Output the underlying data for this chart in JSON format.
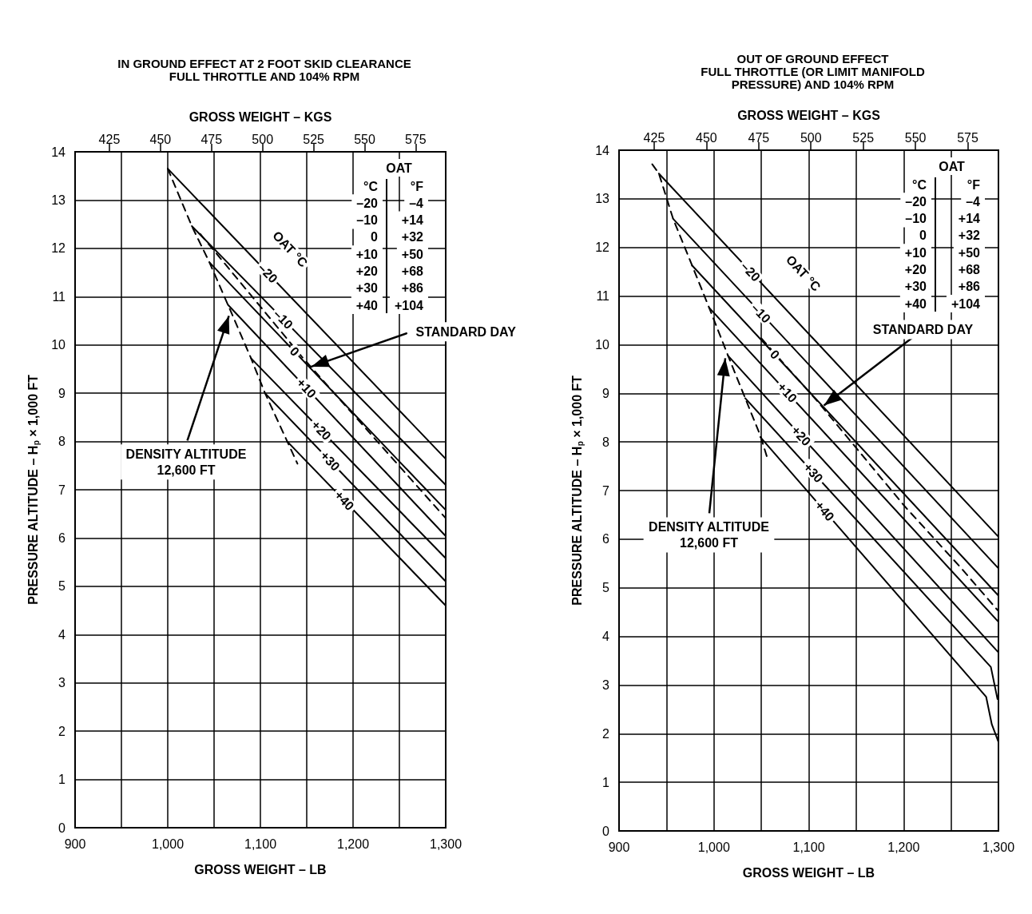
{
  "chart_data": [
    {
      "type": "line",
      "title": "IN GROUND EFFECT AT 2 FOOT SKID CLEARANCE\nFULL THROTTLE AND 104% RPM",
      "xlabel": "GROSS WEIGHT – LB",
      "x2label": "GROSS WEIGHT – KGS",
      "ylabel": "PRESSURE ALTITUDE – H$_{p}$ × 1,000 FT",
      "xlim": [
        900,
        1300
      ],
      "ylim": [
        0,
        14
      ],
      "x2lim": [
        408.2,
        589.7
      ],
      "xticks": [
        900,
        {
          "value": 950,
          "label": null
        },
        {
          "value": 1000,
          "label": "1,000"
        },
        {
          "value": 1050,
          "label": null
        },
        {
          "value": 1100,
          "label": "1,100"
        },
        {
          "value": 1150,
          "label": null
        },
        {
          "value": 1200,
          "label": "1,200"
        },
        {
          "value": 1250,
          "label": null
        },
        {
          "value": 1300,
          "label": "1,300"
        }
      ],
      "yticks": [
        0,
        1,
        2,
        3,
        4,
        5,
        6,
        7,
        8,
        9,
        10,
        11,
        12,
        13,
        14
      ],
      "x2ticks": [
        425,
        450,
        475,
        500,
        525,
        550,
        575
      ],
      "grid": true,
      "marker": "none",
      "line_style": "solid",
      "series": [
        {
          "name": "–20",
          "color": "#000000",
          "x": [
            1000,
            1300
          ],
          "values": [
            13.65,
            7.64
          ]
        },
        {
          "name": "–10",
          "color": "#000000",
          "x": [
            1026,
            1300
          ],
          "values": [
            12.46,
            7.1
          ]
        },
        {
          "name": "0",
          "color": "#000000",
          "x": [
            1045,
            1300
          ],
          "values": [
            11.71,
            6.58
          ]
        },
        {
          "name": "+10",
          "color": "#000000",
          "x": [
            1065,
            1300
          ],
          "values": [
            10.83,
            6.04
          ]
        },
        {
          "name": "+20",
          "color": "#000000",
          "x": [
            1090,
            1300
          ],
          "values": [
            9.72,
            5.58
          ]
        },
        {
          "name": "+30",
          "color": "#000000",
          "x": [
            1105,
            1300
          ],
          "values": [
            9.0,
            5.1
          ]
        },
        {
          "name": "+40",
          "color": "#000000",
          "x": [
            1129,
            1300
          ],
          "values": [
            8.0,
            4.6
          ]
        },
        {
          "color": "#000000",
          "line_style": "dashed",
          "x": [
            1035,
            1145,
            1300
          ],
          "values": [
            12.3,
            9.75,
            6.41
          ]
        },
        {
          "color": "#000000",
          "line_style": "dashed",
          "x": [
            1000,
            1026,
            1045,
            1065,
            1090,
            1105,
            1129,
            1140
          ],
          "values": [
            13.65,
            12.46,
            11.71,
            10.83,
            9.72,
            9.0,
            8.0,
            7.54
          ]
        }
      ],
      "annotations": [
        "OAT °C",
        "OAT",
        "°C",
        "°F",
        "–20",
        "–4",
        "–10",
        "+14",
        "0",
        "+32",
        "+10",
        "+50",
        "+20",
        "+68",
        "+30",
        "+86",
        "+40",
        "+104",
        {
          "text": "STANDARD DAY",
          "x": 1155,
          "y": 9.55
        },
        {
          "text": "DENSITY ALTITUDE\n12,600 FT",
          "x": 1066,
          "y": 10.6
        }
      ]
    },
    {
      "type": "line",
      "title": "OUT OF GROUND EFFECT\nFULL THROTTLE (OR LIMIT MANIFOLD\nPRESSURE) AND 104% RPM",
      "xlabel": "GROSS WEIGHT – LB",
      "x2label": "GROSS WEIGHT – KGS",
      "ylabel": "PRESSURE ALTITUDE – H$_{p}$ × 1,000 FT",
      "xlim": [
        900,
        1300
      ],
      "ylim": [
        0,
        14
      ],
      "x2lim": [
        408.2,
        589.7
      ],
      "xticks": [
        900,
        {
          "value": 950,
          "label": null
        },
        {
          "value": 1000,
          "label": "1,000"
        },
        {
          "value": 1050,
          "label": null
        },
        {
          "value": 1100,
          "label": "1,100"
        },
        {
          "value": 1150,
          "label": null
        },
        {
          "value": 1200,
          "label": "1,200"
        },
        {
          "value": 1250,
          "label": null
        },
        {
          "value": 1300,
          "label": "1,300"
        }
      ],
      "yticks": [
        0,
        1,
        2,
        3,
        4,
        5,
        6,
        7,
        8,
        9,
        10,
        11,
        12,
        13,
        14
      ],
      "x2ticks": [
        425,
        450,
        475,
        500,
        525,
        550,
        575
      ],
      "grid": true,
      "marker": "none",
      "line_style": "solid",
      "series": [
        {
          "name": "–20",
          "color": "#000000",
          "x": [
            942,
            1300
          ],
          "values": [
            13.52,
            6.05
          ]
        },
        {
          "name": "–10",
          "color": "#000000",
          "x": [
            957,
            1300
          ],
          "values": [
            12.59,
            5.4
          ]
        },
        {
          "name": "0",
          "color": "#000000",
          "x": [
            977,
            1300
          ],
          "values": [
            11.63,
            4.84
          ]
        },
        {
          "name": "+10",
          "color": "#000000",
          "x": [
            995,
            1300
          ],
          "values": [
            10.76,
            4.3
          ]
        },
        {
          "name": "+20",
          "color": "#000000",
          "x": [
            1015,
            1300
          ],
          "values": [
            9.77,
            3.67
          ]
        },
        {
          "name": "+30",
          "color": "#000000",
          "x": [
            1033,
            1292,
            1299
          ],
          "values": [
            8.9,
            3.37,
            2.71
          ]
        },
        {
          "name": "+40",
          "color": "#000000",
          "x": [
            1049,
            1287,
            1293,
            1300
          ],
          "values": [
            8.1,
            2.76,
            2.19,
            1.83
          ]
        },
        {
          "color": "#000000",
          "line_style": "dashed",
          "x": [
            1050,
            1109,
            1201,
            1260,
            1300
          ],
          "values": [
            10.13,
            8.84,
            6.68,
            5.42,
            4.52
          ]
        },
        {
          "color": "#000000",
          "line_style": "dashed",
          "x": [
            935,
            942,
            957,
            977,
            995,
            1015,
            1033,
            1049,
            1056
          ],
          "values": [
            13.71,
            13.52,
            12.59,
            11.63,
            10.76,
            9.77,
            8.9,
            8.13,
            7.69
          ]
        }
      ],
      "annotations": [
        "OAT °C",
        "OAT",
        "°C",
        "°F",
        "–20",
        "–4",
        "–10",
        "+14",
        "0",
        "+32",
        "+10",
        "+50",
        "+20",
        "+68",
        "+30",
        "+86",
        "+40",
        "+104",
        {
          "text": "STANDARD DAY",
          "x": 1116,
          "y": 8.75
        },
        {
          "text": "DENSITY ALTITUDE\n12,600 FT",
          "x": 1012,
          "y": 9.72
        }
      ]
    }
  ]
}
